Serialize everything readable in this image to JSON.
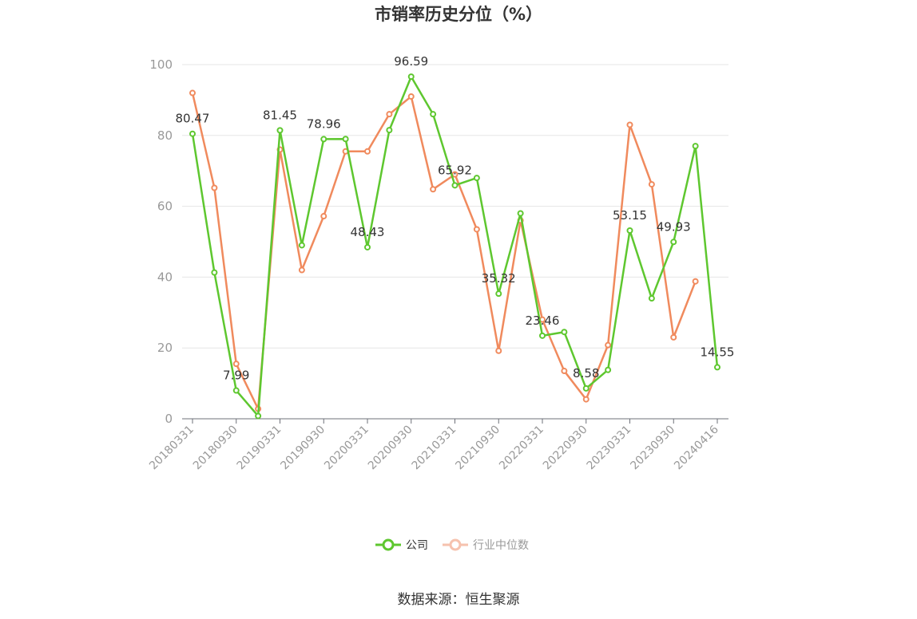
{
  "chart_data": {
    "type": "line",
    "title": "市销率历史分位（%）",
    "x": [
      "20180331",
      "20180630",
      "20180930",
      "20181231",
      "20190331",
      "20190630",
      "20190930",
      "20191231",
      "20200331",
      "20200630",
      "20200930",
      "20201231",
      "20210331",
      "20210630",
      "20210930",
      "20211231",
      "20220331",
      "20220630",
      "20220930",
      "20221231",
      "20230331",
      "20230630",
      "20230930",
      "20231231",
      "20240416"
    ],
    "x_tick_labels": [
      "20180331",
      "20180930",
      "20190331",
      "20190930",
      "20200331",
      "20200930",
      "20210331",
      "20210930",
      "20220331",
      "20220930",
      "20230331",
      "20230930",
      "20240416"
    ],
    "y_ticks": [
      "0",
      "20",
      "40",
      "60",
      "80",
      "100"
    ],
    "ylim": [
      0,
      100
    ],
    "series": [
      {
        "name": "公司",
        "color": "#5ec72f",
        "values": [
          80.47,
          41.3,
          7.99,
          0.8,
          81.45,
          49.0,
          78.96,
          79.0,
          48.43,
          81.5,
          96.59,
          86.0,
          65.92,
          68.0,
          35.32,
          58.0,
          23.46,
          24.5,
          8.58,
          13.8,
          53.15,
          34.0,
          49.93,
          77.0,
          14.55
        ],
        "labels": [
          "80.47",
          null,
          "7.99",
          null,
          "81.45",
          null,
          "78.96",
          null,
          "48.43",
          null,
          "96.59",
          null,
          "65.92",
          null,
          "35.32",
          null,
          "23.46",
          null,
          "8.58",
          null,
          "53.15",
          null,
          "49.93",
          null,
          "14.55"
        ]
      },
      {
        "name": "行业中位数",
        "color": "#f08a5d",
        "values": [
          92.0,
          65.2,
          15.5,
          2.8,
          76.0,
          42.0,
          57.2,
          75.5,
          75.5,
          86.0,
          91.0,
          64.8,
          69.0,
          53.5,
          19.2,
          56.0,
          28.0,
          13.5,
          5.5,
          20.8,
          83.0,
          66.2,
          23.0,
          38.8,
          null
        ]
      }
    ],
    "grid": true,
    "legend_position": "bottom"
  },
  "source": "数据来源：恒生聚源"
}
